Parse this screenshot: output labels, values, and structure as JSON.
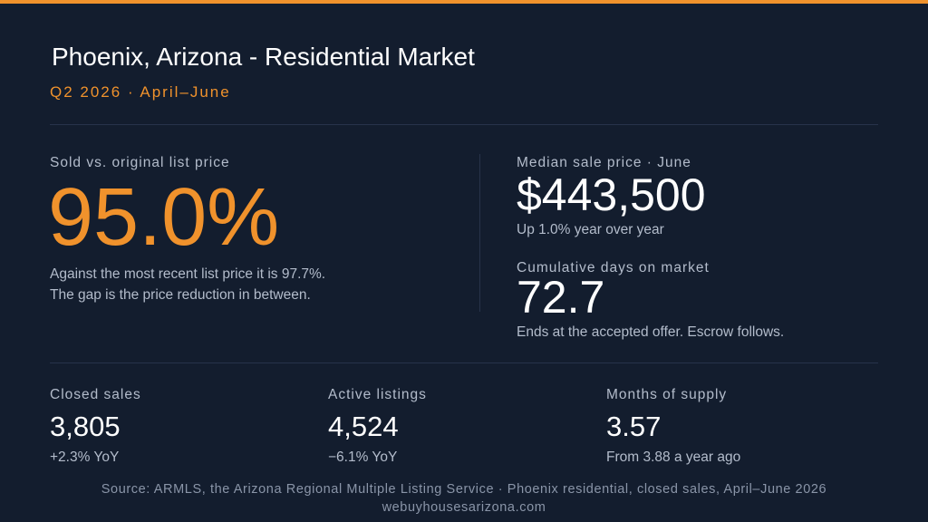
{
  "accent_color": "#f0922c",
  "background_color": "#131d2e",
  "header": {
    "title": "Phoenix, Arizona - Residential Market",
    "subtitle": "Q2 2026 · April–June"
  },
  "hero": {
    "label": "Sold vs. original list price",
    "value": "95.0%",
    "note_line1": "Against the most recent list price it is 97.7%.",
    "note_line2": "The gap is the price reduction in between."
  },
  "median_price": {
    "label": "Median sale price · June",
    "value": "$443,500",
    "note": "Up 1.0% year over year"
  },
  "days_on_market": {
    "label": "Cumulative days on market",
    "value": "72.7",
    "note": "Ends at the accepted offer. Escrow follows."
  },
  "stats": [
    {
      "label": "Closed sales",
      "value": "3,805",
      "note": "+2.3% YoY"
    },
    {
      "label": "Active listings",
      "value": "4,524",
      "note": "−6.1% YoY"
    },
    {
      "label": "Months of supply",
      "value": "3.57",
      "note": "From 3.88 a year ago"
    }
  ],
  "footer": {
    "source": "Source: ARMLS, the Arizona Regional Multiple Listing Service ·  Phoenix residential, closed sales, April–June 2026",
    "website": "webuyhousesarizona.com"
  }
}
